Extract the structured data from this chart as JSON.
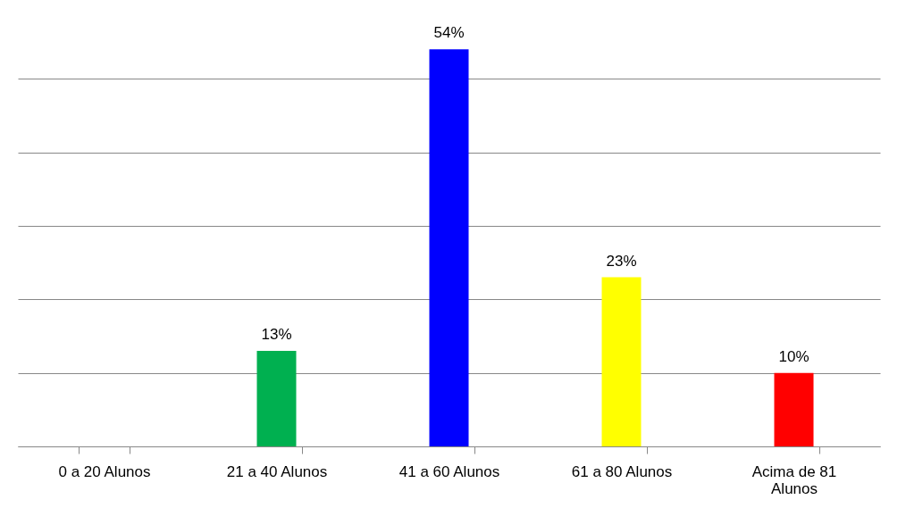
{
  "chart_data": {
    "type": "bar",
    "categories": [
      "0 a 20 Alunos",
      "21 a 40 Alunos",
      "41 a 60 Alunos",
      "61 a 80 Alunos",
      "Acima de 81 Alunos"
    ],
    "values": [
      null,
      13,
      54,
      23,
      10
    ],
    "colors": [
      "#00b050",
      "#00b050",
      "#0000ff",
      "#ffff00",
      "#ff0000"
    ],
    "value_labels": [
      null,
      "13%",
      "54%",
      "23%",
      "10%"
    ],
    "grid": "y",
    "tick_labels": "x"
  }
}
